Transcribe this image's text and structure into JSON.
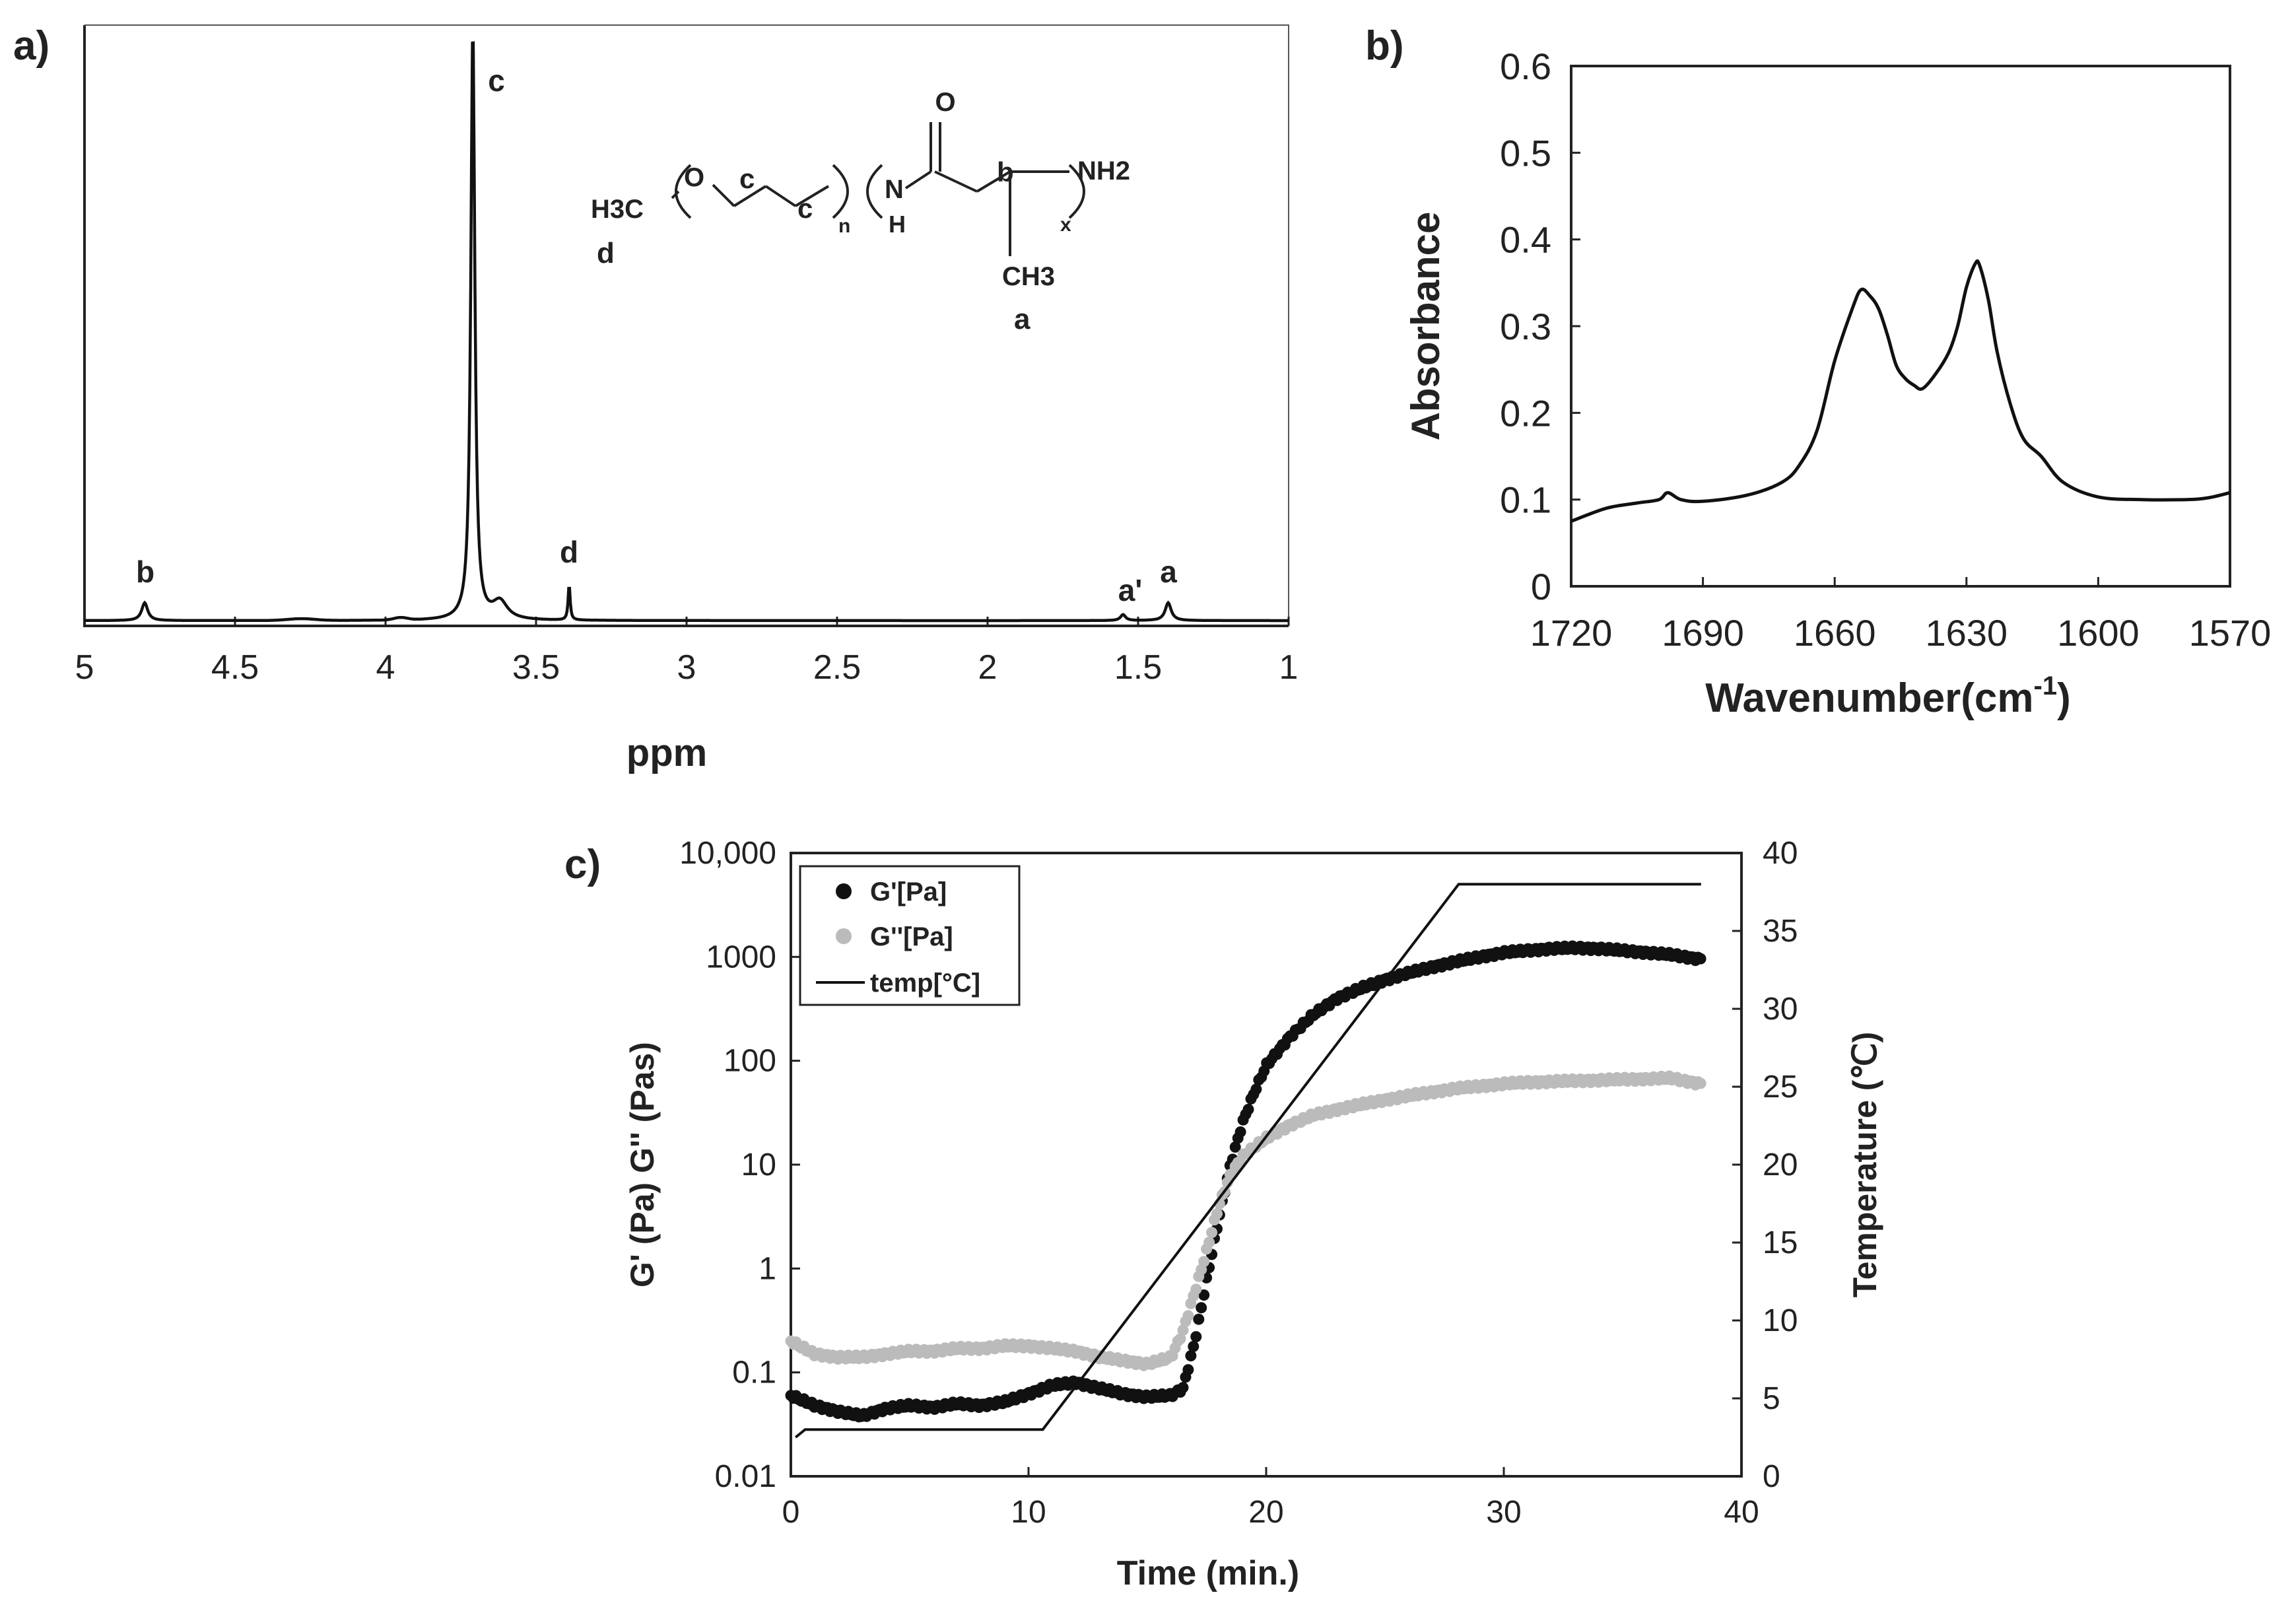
{
  "chart_data": [
    {
      "panel": "a)",
      "type": "line",
      "title": "",
      "xlabel": "ppm",
      "ylabel": "",
      "xlim": [
        5,
        1
      ],
      "x_ticks": [
        "5",
        "4.5",
        "4",
        "3.5",
        "3",
        "2.5",
        "2",
        "1.5",
        "1"
      ],
      "peaks": [
        {
          "label": "b",
          "ppm": 4.8,
          "height": 0.03
        },
        {
          "label": "c",
          "ppm": 3.71,
          "height": 1.0
        },
        {
          "label": "d",
          "ppm": 3.39,
          "height": 0.06
        },
        {
          "label": "a'",
          "ppm": 1.55,
          "height": 0.01
        },
        {
          "label": "a",
          "ppm": 1.4,
          "height": 0.03
        }
      ],
      "structure": {
        "h3c": "H3C",
        "o": "O",
        "c1": "c",
        "c2": "c",
        "n_sub": "n",
        "n_atom": "N",
        "h_atom": "H",
        "carbonyl_o": "O",
        "b": "b",
        "nh2": "NH2",
        "x_sub": "x",
        "ch3": "CH3",
        "a": "a",
        "d": "d"
      }
    },
    {
      "panel": "b)",
      "type": "line",
      "title": "",
      "xlabel": "Wavenumber(cm-1)",
      "ylabel": "Absorbance",
      "xlim": [
        1720,
        1570
      ],
      "ylim": [
        0,
        0.6
      ],
      "x_ticks": [
        "1720",
        "1690",
        "1660",
        "1630",
        "1600",
        "1570"
      ],
      "y_ticks": [
        "0",
        "0.1",
        "0.2",
        "0.3",
        "0.4",
        "0.5",
        "0.6"
      ],
      "series": [
        {
          "name": "absorbance",
          "x": [
            1720,
            1712,
            1705,
            1700,
            1698,
            1695,
            1690,
            1680,
            1672,
            1668,
            1664,
            1660,
            1656,
            1654,
            1652,
            1650,
            1648,
            1646,
            1644,
            1642,
            1640,
            1637,
            1634,
            1632,
            1630,
            1628,
            1627,
            1625,
            1623,
            1620,
            1617,
            1613,
            1608,
            1600,
            1590,
            1580,
            1575,
            1570
          ],
          "y": [
            0.075,
            0.09,
            0.096,
            0.1,
            0.108,
            0.1,
            0.098,
            0.105,
            0.12,
            0.14,
            0.18,
            0.26,
            0.32,
            0.342,
            0.335,
            0.32,
            0.29,
            0.255,
            0.24,
            0.232,
            0.228,
            0.245,
            0.27,
            0.3,
            0.345,
            0.372,
            0.37,
            0.33,
            0.27,
            0.21,
            0.17,
            0.15,
            0.12,
            0.103,
            0.1,
            0.1,
            0.102,
            0.108
          ]
        }
      ]
    },
    {
      "panel": "c)",
      "type": "scatter",
      "title": "",
      "xlabel": "Time (min.)",
      "ylabel": "G' (Pa) G'' (Pas)",
      "ylabel_right": "Temperature (℃)",
      "xlim": [
        0,
        40
      ],
      "ylim": [
        0.01,
        10000
      ],
      "ylim_right": [
        0,
        40
      ],
      "x_ticks": [
        "0",
        "10",
        "20",
        "30",
        "40"
      ],
      "y_ticks": [
        "0.01",
        "0.1",
        "1",
        "10",
        "100",
        "1000",
        "10,000"
      ],
      "y_ticks_right": [
        "0",
        "5",
        "10",
        "15",
        "20",
        "25",
        "30",
        "35",
        "40"
      ],
      "legend": [
        "G'[Pa]",
        "G''[Pa]",
        "temp[°C]"
      ],
      "series": [
        {
          "name": "G'[Pa]",
          "color": "#111111",
          "x": [
            0,
            1,
            2,
            3,
            4,
            5,
            6,
            7,
            8,
            9,
            10,
            11,
            12,
            13,
            14,
            15,
            16,
            16.5,
            17,
            17.5,
            18,
            18.5,
            19,
            19.5,
            20,
            21,
            22,
            23,
            24,
            25,
            26,
            27,
            28,
            29,
            30,
            31,
            32,
            33,
            34,
            35,
            36,
            37,
            38.3
          ],
          "y": [
            0.06,
            0.048,
            0.042,
            0.038,
            0.045,
            0.048,
            0.046,
            0.05,
            0.048,
            0.052,
            0.062,
            0.075,
            0.08,
            0.07,
            0.062,
            0.058,
            0.06,
            0.07,
            0.2,
            0.8,
            3,
            10,
            25,
            50,
            90,
            170,
            280,
            400,
            500,
            600,
            700,
            800,
            900,
            1000,
            1100,
            1150,
            1200,
            1220,
            1200,
            1150,
            1100,
            1050,
            950
          ]
        },
        {
          "name": "G''[Pa]",
          "color": "#bbbbbb",
          "x": [
            0,
            1,
            2,
            3,
            4,
            5,
            6,
            7,
            8,
            9,
            10,
            11,
            12,
            13,
            14,
            15,
            16,
            16.5,
            17,
            17.5,
            18,
            18.5,
            19,
            20,
            21,
            22,
            23,
            24,
            25,
            26,
            27,
            28,
            29,
            30,
            31,
            32,
            33,
            34,
            35,
            36,
            37,
            38.3
          ],
          "y": [
            0.2,
            0.15,
            0.14,
            0.14,
            0.15,
            0.16,
            0.16,
            0.17,
            0.17,
            0.18,
            0.18,
            0.17,
            0.16,
            0.14,
            0.13,
            0.12,
            0.14,
            0.25,
            0.6,
            1.5,
            4,
            8,
            12,
            18,
            24,
            30,
            34,
            38,
            42,
            46,
            50,
            54,
            57,
            60,
            62,
            63,
            64,
            65,
            66,
            67,
            68,
            60
          ]
        },
        {
          "name": "temp[°C]",
          "color": "#111111",
          "x": [
            0.2,
            0.6,
            10.6,
            28.1,
            38.3
          ],
          "y": [
            2.5,
            3,
            3,
            38,
            38
          ]
        }
      ]
    }
  ]
}
